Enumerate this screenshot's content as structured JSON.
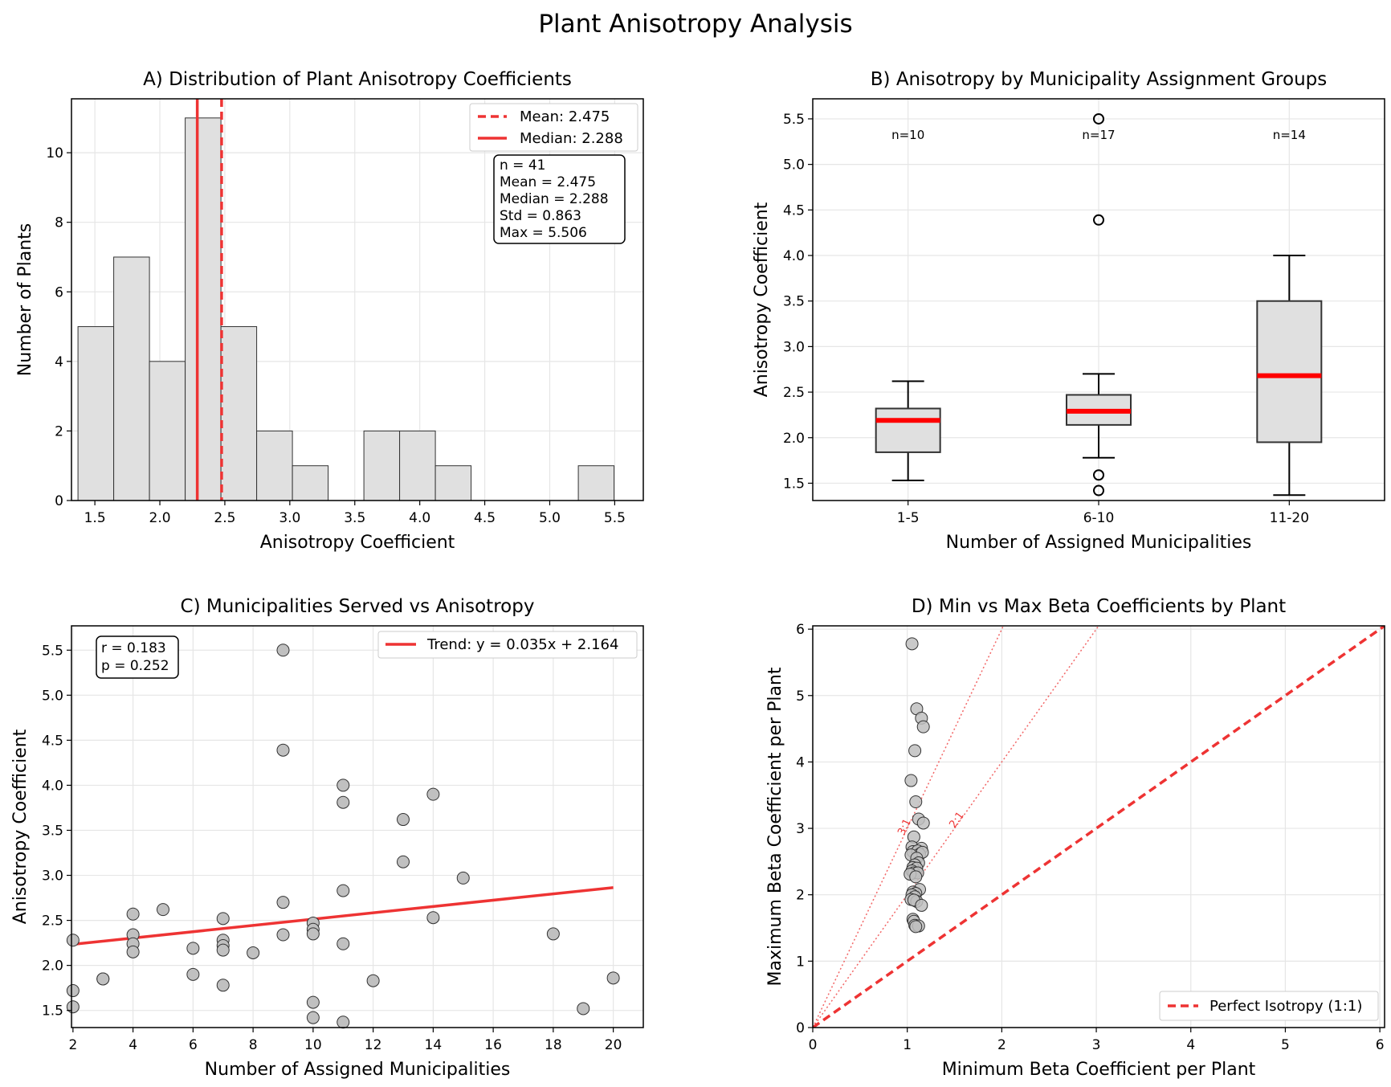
{
  "figure": {
    "title": "Plant Anisotropy Analysis"
  },
  "colors": {
    "accent": "#ee3333",
    "bar_fill": "#e0e0e0",
    "grid": "#e6e6e6",
    "point_fill": "#c0c0c0"
  },
  "chart_data": [
    {
      "id": "A",
      "type": "bar",
      "title": "A) Distribution of Plant Anisotropy Coefficients",
      "xlabel": "Anisotropy Coefficient",
      "ylabel": "Number of Plants",
      "xlim": [
        1.32,
        5.72
      ],
      "ylim": [
        0,
        11.55
      ],
      "xticks": [
        1.5,
        2.0,
        2.5,
        3.0,
        3.5,
        4.0,
        4.5,
        5.0,
        5.5
      ],
      "xtick_labels": [
        "1.5",
        "2.0",
        "2.5",
        "3.0",
        "3.5",
        "4.0",
        "4.5",
        "5.0",
        "5.5"
      ],
      "yticks": [
        0,
        2,
        4,
        6,
        8,
        10
      ],
      "ytick_labels": [
        "0",
        "2",
        "4",
        "6",
        "8",
        "10"
      ],
      "bins": [
        1.37,
        1.645,
        1.92,
        2.195,
        2.47,
        2.745,
        3.02,
        3.295,
        3.57,
        3.845,
        4.12,
        4.395,
        4.67,
        4.945,
        5.22,
        5.495
      ],
      "counts": [
        5,
        7,
        4,
        11,
        5,
        2,
        1,
        0,
        2,
        2,
        1,
        0,
        0,
        0,
        1
      ],
      "mean": 2.475,
      "median": 2.288,
      "legend": [
        "Mean: 2.475",
        "Median: 2.288"
      ],
      "stats_box": [
        "n = 41",
        "Mean = 2.475",
        "Median = 2.288",
        "Std = 0.863",
        "Max = 5.506"
      ],
      "legend_position": "upper right"
    },
    {
      "id": "B",
      "type": "box",
      "title": "B) Anisotropy by Municipality Assignment Groups",
      "xlabel": "Number of Assigned Municipalities",
      "ylabel": "Anisotropy Coefficient",
      "ylim": [
        1.31,
        5.72
      ],
      "yticks": [
        1.5,
        2.0,
        2.5,
        3.0,
        3.5,
        4.0,
        4.5,
        5.0,
        5.5
      ],
      "ytick_labels": [
        "1.5",
        "2.0",
        "2.5",
        "3.0",
        "3.5",
        "4.0",
        "4.5",
        "5.0",
        "5.5"
      ],
      "categories": [
        "1-5",
        "6-10",
        "11-20"
      ],
      "boxes": [
        {
          "q1": 1.84,
          "median": 2.19,
          "q3": 2.32,
          "whisker_low": 1.53,
          "whisker_high": 2.62,
          "outliers": [],
          "n_label": "n=10"
        },
        {
          "q1": 2.14,
          "median": 2.29,
          "q3": 2.47,
          "whisker_low": 1.78,
          "whisker_high": 2.7,
          "outliers": [
            5.5,
            4.39,
            1.59,
            1.42
          ],
          "n_label": "n=17"
        },
        {
          "q1": 1.95,
          "median": 2.68,
          "q3": 3.5,
          "whisker_low": 1.37,
          "whisker_high": 4.0,
          "outliers": [],
          "n_label": "n=14"
        }
      ]
    },
    {
      "id": "C",
      "type": "scatter",
      "title": "C) Municipalities Served vs Anisotropy",
      "xlabel": "Number of Assigned Municipalities",
      "ylabel": "Anisotropy Coefficient",
      "xlim": [
        1.95,
        21.0
      ],
      "ylim": [
        1.31,
        5.77
      ],
      "xticks": [
        2,
        4,
        6,
        8,
        10,
        12,
        14,
        16,
        18,
        20
      ],
      "xtick_labels": [
        "2",
        "4",
        "6",
        "8",
        "10",
        "12",
        "14",
        "16",
        "18",
        "20"
      ],
      "yticks": [
        1.5,
        2.0,
        2.5,
        3.0,
        3.5,
        4.0,
        4.5,
        5.0,
        5.5
      ],
      "ytick_labels": [
        "1.5",
        "2.0",
        "2.5",
        "3.0",
        "3.5",
        "4.0",
        "4.5",
        "5.0",
        "5.5"
      ],
      "points": [
        [
          2,
          2.28
        ],
        [
          2,
          1.72
        ],
        [
          2,
          1.54
        ],
        [
          3,
          1.85
        ],
        [
          3,
          1.85
        ],
        [
          4,
          2.57
        ],
        [
          4,
          2.34
        ],
        [
          4,
          2.24
        ],
        [
          4,
          2.15
        ],
        [
          5,
          2.62
        ],
        [
          6,
          2.19
        ],
        [
          6,
          1.9
        ],
        [
          7,
          2.52
        ],
        [
          7,
          2.28
        ],
        [
          7,
          2.22
        ],
        [
          7,
          2.17
        ],
        [
          7,
          1.78
        ],
        [
          8,
          2.14
        ],
        [
          9,
          5.5
        ],
        [
          9,
          4.39
        ],
        [
          9,
          2.7
        ],
        [
          9,
          2.34
        ],
        [
          10,
          2.47
        ],
        [
          10,
          2.4
        ],
        [
          10,
          2.35
        ],
        [
          10,
          1.59
        ],
        [
          10,
          1.42
        ],
        [
          11,
          4.0
        ],
        [
          11,
          3.81
        ],
        [
          11,
          2.83
        ],
        [
          11,
          2.24
        ],
        [
          11,
          1.37
        ],
        [
          12,
          1.83
        ],
        [
          13,
          3.62
        ],
        [
          13,
          3.15
        ],
        [
          14,
          3.9
        ],
        [
          14,
          2.53
        ],
        [
          15,
          2.97
        ],
        [
          18,
          2.35
        ],
        [
          19,
          1.52
        ],
        [
          20,
          1.86
        ]
      ],
      "trend": {
        "slope": 0.035,
        "intercept": 2.164,
        "x_range": [
          2,
          20
        ],
        "label": "Trend: y = 0.035x + 2.164"
      },
      "stats_box": [
        "r = 0.183",
        "p = 0.252"
      ]
    },
    {
      "id": "D",
      "type": "scatter",
      "title": "D) Min vs Max Beta Coefficients by Plant",
      "xlabel": "Minimum Beta Coefficient per Plant",
      "ylabel": "Maximum Beta Coefficient per Plant",
      "xlim": [
        0,
        6.05
      ],
      "ylim": [
        0,
        6.05
      ],
      "xticks": [
        0,
        1,
        2,
        3,
        4,
        5,
        6
      ],
      "xtick_labels": [
        "0",
        "1",
        "2",
        "3",
        "4",
        "5",
        "6"
      ],
      "yticks": [
        0,
        1,
        2,
        3,
        4,
        5,
        6
      ],
      "ytick_labels": [
        "0",
        "1",
        "2",
        "3",
        "4",
        "5",
        "6"
      ],
      "points": [
        [
          1.05,
          5.78
        ],
        [
          1.1,
          4.8
        ],
        [
          1.15,
          4.66
        ],
        [
          1.17,
          4.53
        ],
        [
          1.08,
          4.17
        ],
        [
          1.04,
          3.72
        ],
        [
          1.09,
          3.4
        ],
        [
          1.12,
          3.14
        ],
        [
          1.17,
          3.08
        ],
        [
          1.07,
          2.87
        ],
        [
          1.05,
          2.72
        ],
        [
          1.15,
          2.7
        ],
        [
          1.06,
          2.65
        ],
        [
          1.11,
          2.66
        ],
        [
          1.13,
          2.61
        ],
        [
          1.16,
          2.64
        ],
        [
          1.04,
          2.6
        ],
        [
          1.1,
          2.55
        ],
        [
          1.12,
          2.48
        ],
        [
          1.08,
          2.45
        ],
        [
          1.06,
          2.41
        ],
        [
          1.1,
          2.4
        ],
        [
          1.05,
          2.36
        ],
        [
          1.07,
          2.33
        ],
        [
          1.11,
          2.33
        ],
        [
          1.03,
          2.31
        ],
        [
          1.09,
          2.27
        ],
        [
          1.13,
          2.08
        ],
        [
          1.06,
          2.04
        ],
        [
          1.09,
          2.02
        ],
        [
          1.05,
          2.0
        ],
        [
          1.08,
          1.97
        ],
        [
          1.04,
          1.93
        ],
        [
          1.1,
          1.9
        ],
        [
          1.07,
          1.92
        ],
        [
          1.15,
          1.84
        ],
        [
          1.06,
          1.63
        ],
        [
          1.07,
          1.6
        ],
        [
          1.08,
          1.54
        ],
        [
          1.12,
          1.53
        ],
        [
          1.09,
          1.52
        ]
      ],
      "reference_lines": [
        {
          "slope": 1,
          "label": "Perfect Isotropy (1:1)"
        },
        {
          "slope": 2,
          "label": "2:1"
        },
        {
          "slope": 3,
          "label": "3:1"
        }
      ]
    }
  ]
}
